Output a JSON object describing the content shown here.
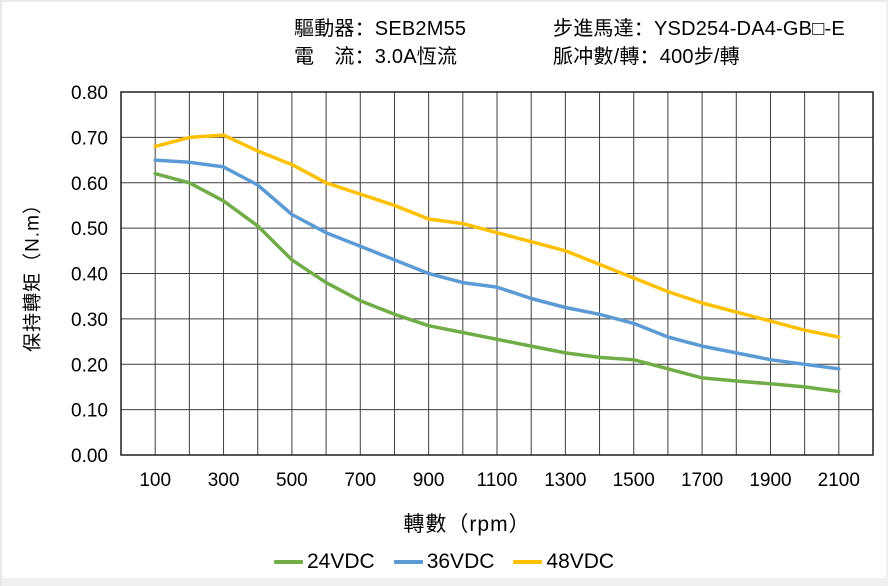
{
  "header": {
    "driver": "驅動器：SEB2M55",
    "motor": "步進馬達：YSD254-DA4-GB□-E",
    "current": "電　流：3.0A恆流",
    "pulses": "脈冲數/轉：400步/轉"
  },
  "chart_data": {
    "type": "line",
    "title": "",
    "xlabel": "轉數（rpm）",
    "ylabel": "保持轉矩（N.m）",
    "xlim": [
      0,
      2200
    ],
    "ylim": [
      0,
      0.8
    ],
    "x_grid_step": 100,
    "y_grid_step": 0.1,
    "grid": true,
    "legend_position": "bottom",
    "xticks": [
      100,
      300,
      500,
      700,
      900,
      1100,
      1300,
      1500,
      1700,
      1900,
      2100
    ],
    "yticks": [
      "0.00",
      "0.10",
      "0.20",
      "0.30",
      "0.40",
      "0.50",
      "0.60",
      "0.70",
      "0.80"
    ],
    "x": [
      100,
      200,
      300,
      400,
      500,
      600,
      700,
      800,
      900,
      1000,
      1100,
      1200,
      1300,
      1400,
      1500,
      1600,
      1700,
      1800,
      1900,
      2000,
      2100
    ],
    "series": [
      {
        "name": "24VDC",
        "color": "#70AD47",
        "values": [
          0.62,
          0.6,
          0.56,
          0.505,
          0.43,
          0.38,
          0.34,
          0.31,
          0.285,
          0.27,
          0.255,
          0.24,
          0.225,
          0.215,
          0.21,
          0.19,
          0.17,
          0.163,
          0.157,
          0.15,
          0.14
        ]
      },
      {
        "name": "36VDC",
        "color": "#5B9BD5",
        "values": [
          0.65,
          0.645,
          0.635,
          0.595,
          0.53,
          0.49,
          0.46,
          0.43,
          0.4,
          0.38,
          0.37,
          0.345,
          0.325,
          0.31,
          0.29,
          0.26,
          0.24,
          0.225,
          0.21,
          0.2,
          0.19
        ]
      },
      {
        "name": "48VDC",
        "color": "#FFC000",
        "values": [
          0.68,
          0.7,
          0.705,
          0.67,
          0.64,
          0.6,
          0.575,
          0.55,
          0.52,
          0.51,
          0.49,
          0.47,
          0.45,
          0.42,
          0.39,
          0.36,
          0.335,
          0.315,
          0.295,
          0.275,
          0.26
        ]
      }
    ],
    "colors": {
      "grid": "#3f3f3f",
      "border": "#1f1f1f",
      "text": "#000000"
    }
  }
}
